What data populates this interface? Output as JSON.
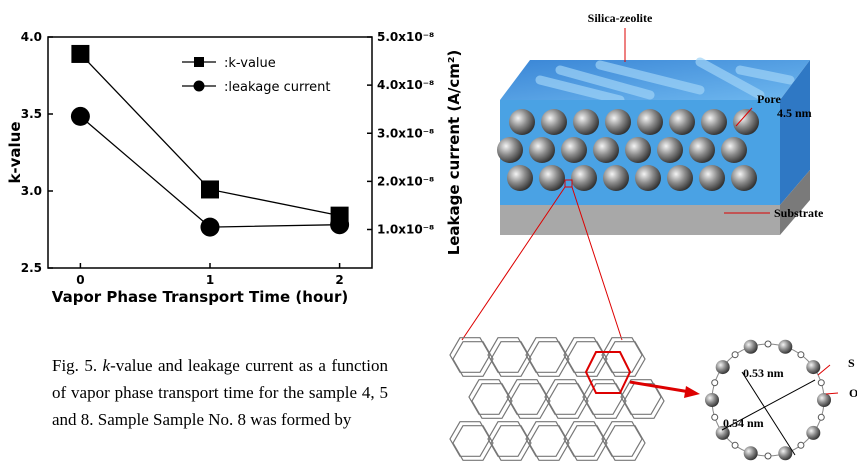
{
  "chart_data": {
    "type": "line",
    "x": [
      0,
      1,
      2
    ],
    "xlim": [
      -0.25,
      2.25
    ],
    "xticks": [
      0,
      1,
      2
    ],
    "xlabel": "Vapor Phase Transport Time (hour)",
    "ylabel": "k-value",
    "y2label": "Leakage current (A/cm²)",
    "ylim": [
      2.5,
      4.0
    ],
    "yticks": [
      2.5,
      {
        "value": 3,
        "label": "3.0"
      },
      3.5,
      {
        "value": 4,
        "label": "4.0"
      }
    ],
    "y2lim": [
      2e-09,
      5e-08
    ],
    "y2ticks": [
      {
        "value": 1e-08,
        "label": "1.0x10⁻⁸"
      },
      {
        "value": 2e-08,
        "label": "2.0x10⁻⁸"
      },
      {
        "value": 3e-08,
        "label": "3.0x10⁻⁸"
      },
      {
        "value": 4e-08,
        "label": "4.0x10⁻⁸"
      },
      {
        "value": 5e-08,
        "label": "5.0x10⁻⁸"
      }
    ],
    "legend_position": "upper right",
    "series": [
      {
        "name": ":k-value",
        "color": "#000000",
        "marker": "square",
        "values": [
          3.89,
          3.01,
          2.84
        ]
      },
      {
        "name": ":leakage current",
        "color": "#000000",
        "marker": "circle",
        "axis": "y2",
        "values": [
          3.35e-08,
          1.05e-08,
          1.1e-08
        ]
      }
    ]
  },
  "caption": {
    "prefix": "Fig. 5. ",
    "italic": "k",
    "text": "-value and leakage current as a function of vapor phase transport time for the sample 4, 5 and 8. Sample Sample No. 8 was formed by"
  },
  "diagram": {
    "silica_zeolite": "Silica-zeolite",
    "pore": "Pore",
    "pore_size": "4.5 nm",
    "substrate": "Substrate",
    "dim1": "0.53 nm",
    "dim2": "0.54 nm",
    "atom1": "S",
    "atom2": "O"
  }
}
